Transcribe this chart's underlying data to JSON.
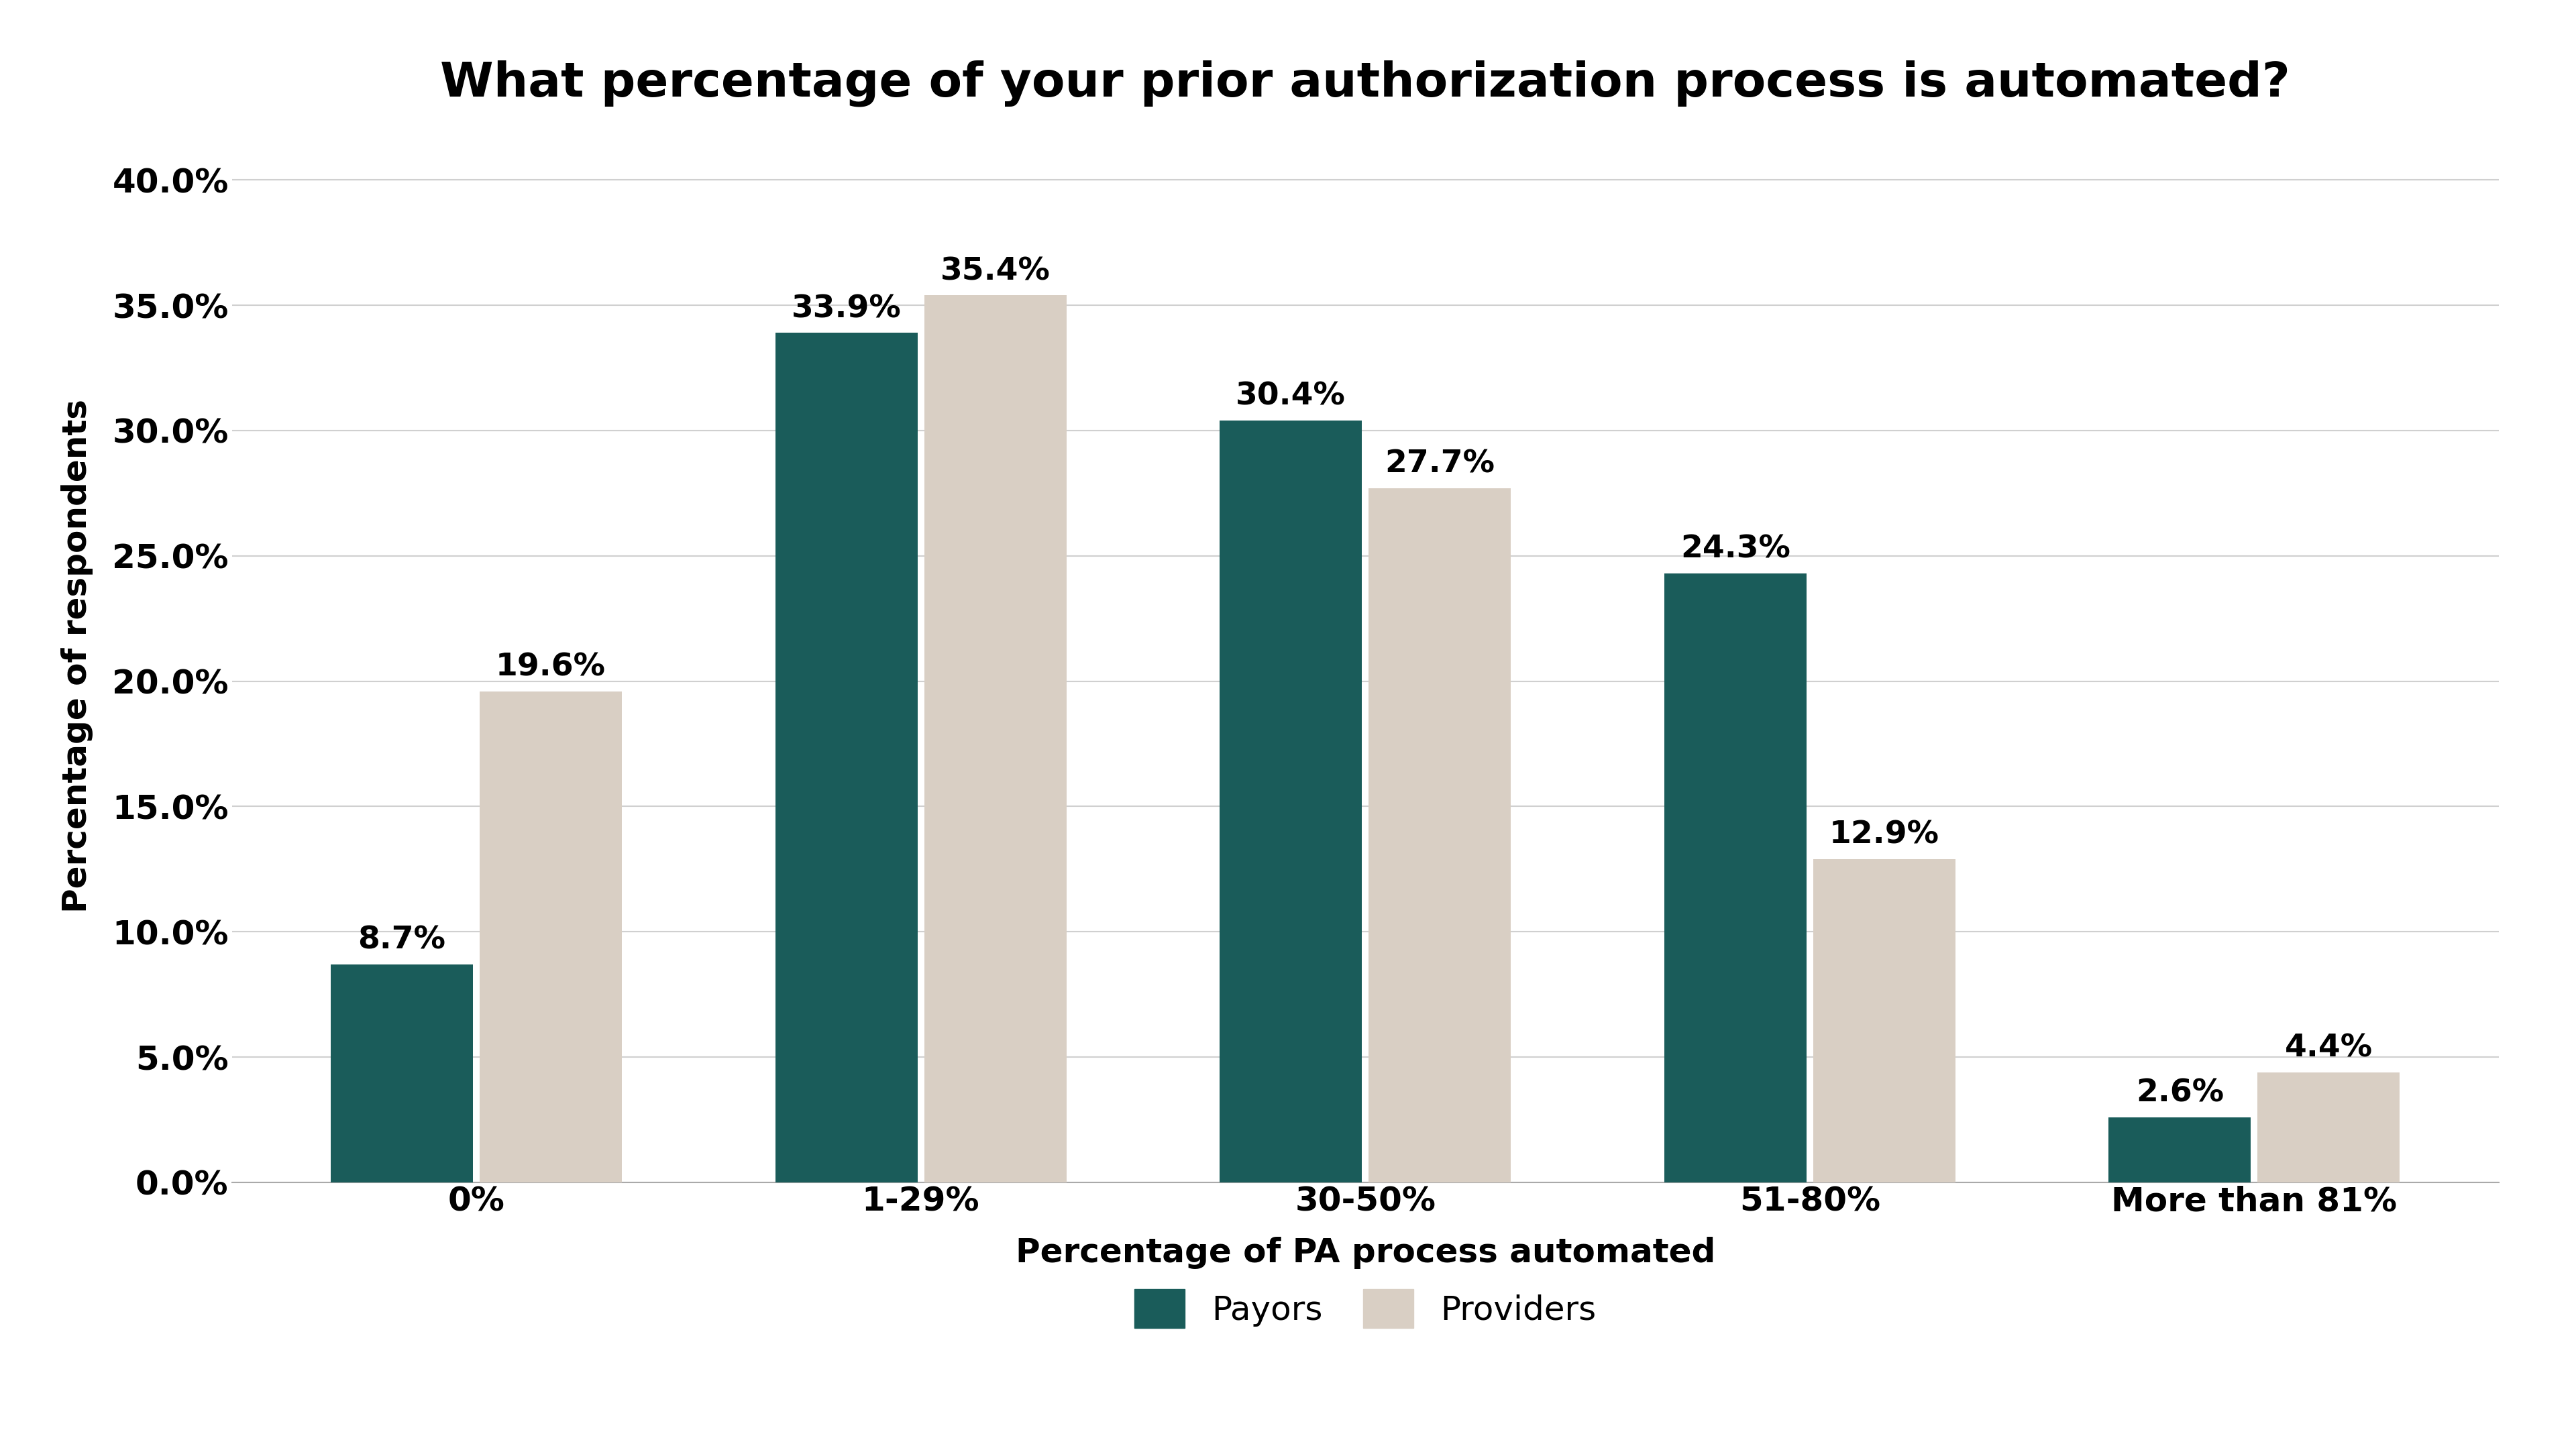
{
  "title": "What percentage of your prior authorization process is automated?",
  "categories": [
    "0%",
    "1-29%",
    "30-50%",
    "51-80%",
    "More than 81%"
  ],
  "payors": [
    8.7,
    33.9,
    30.4,
    24.3,
    2.6
  ],
  "providers": [
    19.6,
    35.4,
    27.7,
    12.9,
    4.4
  ],
  "payor_color": "#1a5c5a",
  "provider_color": "#d9cfc4",
  "xlabel": "Percentage of PA process automated",
  "ylabel": "Percentage of respondents",
  "ylim": [
    0,
    42
  ],
  "yticks": [
    0.0,
    5.0,
    10.0,
    15.0,
    20.0,
    25.0,
    30.0,
    35.0,
    40.0
  ],
  "ytick_labels": [
    "0.0%",
    "5.0%",
    "10.0%",
    "15.0%",
    "20.0%",
    "25.0%",
    "30.0%",
    "35.0%",
    "40.0%"
  ],
  "legend_labels": [
    "Payors",
    "Providers"
  ],
  "background_color": "#ffffff",
  "grid_color": "#d0d0d0",
  "title_fontsize": 52,
  "axis_label_fontsize": 36,
  "tick_fontsize": 36,
  "bar_label_fontsize": 34,
  "legend_fontsize": 36,
  "bar_width": 0.32,
  "bar_gap": 0.015
}
